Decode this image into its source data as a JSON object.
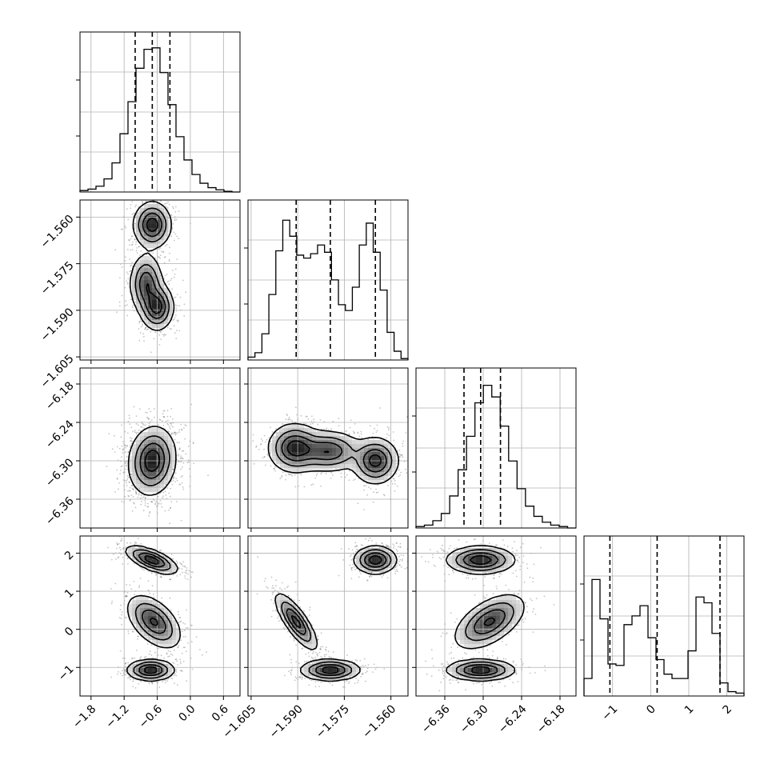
{
  "chart_data": {
    "type": "corner",
    "labels": [
      "",
      "",
      "",
      ""
    ],
    "grid": true,
    "params": [
      {
        "range": [
          -2.0,
          0.9
        ],
        "ticks": [
          -1.8,
          -1.2,
          -0.6,
          0.0,
          0.6
        ],
        "tick_labels": [
          "−1.8",
          "−1.2",
          "−0.6",
          "0.0",
          "0.6"
        ],
        "quantiles": [
          -1.0,
          -0.69,
          -0.37
        ]
      },
      {
        "range": [
          -1.606,
          -1.5545
        ],
        "ticks": [
          -1.605,
          -1.59,
          -1.575,
          -1.56
        ],
        "tick_labels": [
          "−1.605",
          "−1.590",
          "−1.575",
          "−1.560"
        ],
        "quantiles": [
          -1.5905,
          -1.5795,
          -1.565
        ]
      },
      {
        "range": [
          -6.405,
          -6.155
        ],
        "ticks": [
          -6.36,
          -6.3,
          -6.24,
          -6.18
        ],
        "tick_labels": [
          "−6.36",
          "−6.30",
          "−6.24",
          "−6.18"
        ],
        "quantiles": [
          -6.33,
          -6.304,
          -6.273
        ]
      },
      {
        "range": [
          -1.75,
          2.45
        ],
        "ticks": [
          -1,
          0,
          1,
          2
        ],
        "tick_labels": [
          "−1",
          "0",
          "1",
          "2"
        ],
        "quantiles": [
          -1.07,
          0.17,
          1.82
        ]
      }
    ],
    "histograms": [
      {
        "param": 0,
        "heights": [
          0.01,
          0.02,
          0.04,
          0.09,
          0.2,
          0.4,
          0.62,
          0.85,
          0.98,
          0.99,
          0.82,
          0.6,
          0.38,
          0.22,
          0.12,
          0.06,
          0.03,
          0.015,
          0.005,
          0
        ]
      },
      {
        "param": 1,
        "heights": [
          0.02,
          0.05,
          0.18,
          0.45,
          0.75,
          0.96,
          0.85,
          0.72,
          0.7,
          0.73,
          0.79,
          0.74,
          0.55,
          0.38,
          0.34,
          0.5,
          0.79,
          0.94,
          0.74,
          0.48,
          0.19,
          0.06,
          0.01
        ]
      },
      {
        "param": 2,
        "heights": [
          0.01,
          0.02,
          0.05,
          0.1,
          0.22,
          0.4,
          0.63,
          0.86,
          0.98,
          0.9,
          0.7,
          0.46,
          0.27,
          0.15,
          0.08,
          0.04,
          0.02,
          0.01,
          0
        ]
      },
      {
        "param": 3,
        "heights": [
          0.12,
          0.8,
          0.53,
          0.22,
          0.21,
          0.49,
          0.55,
          0.62,
          0.4,
          0.25,
          0.15,
          0.12,
          0.12,
          0.31,
          0.68,
          0.64,
          0.43,
          0.09,
          0.03,
          0.02
        ]
      }
    ],
    "contour_panels": [
      {
        "x_param": 0,
        "y_param": 1,
        "clusters": [
          {
            "cx": -0.69,
            "cy": -1.5625,
            "sx": 0.16,
            "sy": 0.0035,
            "rho": 0.0,
            "w": 1.0
          },
          {
            "cx": -0.8,
            "cy": -1.5815,
            "sx": 0.14,
            "sy": 0.0045,
            "rho": 0.0,
            "w": 0.8
          },
          {
            "cx": -0.6,
            "cy": -1.589,
            "sx": 0.14,
            "sy": 0.0035,
            "rho": 0.0,
            "w": 0.95
          }
        ]
      },
      {
        "x_param": 0,
        "y_param": 2,
        "clusters": [
          {
            "cx": -0.69,
            "cy": -6.3,
            "sx": 0.2,
            "sy": 0.025,
            "rho": 0.1,
            "w": 1.0
          }
        ]
      },
      {
        "x_param": 1,
        "y_param": 2,
        "clusters": [
          {
            "cx": -1.591,
            "cy": -6.28,
            "sx": 0.004,
            "sy": 0.018,
            "rho": 0.0,
            "w": 1.0
          },
          {
            "cx": -1.58,
            "cy": -6.285,
            "sx": 0.005,
            "sy": 0.015,
            "rho": 0.0,
            "w": 0.85
          },
          {
            "cx": -1.565,
            "cy": -6.3,
            "sx": 0.0035,
            "sy": 0.017,
            "rho": 0.0,
            "w": 1.0
          }
        ]
      },
      {
        "x_param": 0,
        "y_param": 3,
        "clusters": [
          {
            "cx": -0.7,
            "cy": 1.82,
            "sx": 0.22,
            "sy": 0.17,
            "rho": -0.65,
            "w": 1.0
          },
          {
            "cx": -0.66,
            "cy": 0.2,
            "sx": 0.23,
            "sy": 0.33,
            "rho": -0.5,
            "w": 0.85
          },
          {
            "cx": -0.72,
            "cy": -1.07,
            "sx": 0.2,
            "sy": 0.13,
            "rho": 0.0,
            "w": 1.0
          }
        ]
      },
      {
        "x_param": 1,
        "y_param": 3,
        "clusters": [
          {
            "cx": -1.565,
            "cy": 1.82,
            "sx": 0.0032,
            "sy": 0.17,
            "rho": 0.0,
            "w": 1.0
          },
          {
            "cx": -1.5905,
            "cy": 0.2,
            "sx": 0.0032,
            "sy": 0.35,
            "rho": -0.8,
            "w": 0.9
          },
          {
            "cx": -1.5795,
            "cy": -1.07,
            "sx": 0.0045,
            "sy": 0.13,
            "rho": 0.0,
            "w": 1.0
          }
        ]
      },
      {
        "x_param": 2,
        "y_param": 3,
        "clusters": [
          {
            "cx": -6.304,
            "cy": 1.82,
            "sx": 0.025,
            "sy": 0.17,
            "rho": 0.0,
            "w": 1.0
          },
          {
            "cx": -6.29,
            "cy": 0.2,
            "sx": 0.026,
            "sy": 0.34,
            "rho": 0.55,
            "w": 0.85
          },
          {
            "cx": -6.304,
            "cy": -1.07,
            "sx": 0.025,
            "sy": 0.13,
            "rho": 0.0,
            "w": 1.0
          }
        ]
      }
    ]
  }
}
